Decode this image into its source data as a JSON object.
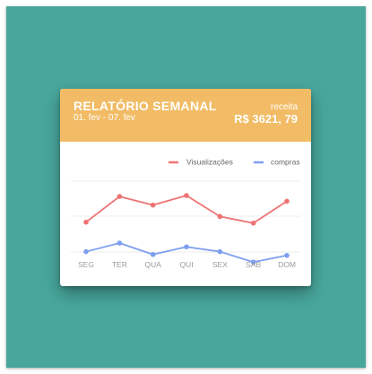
{
  "report": {
    "title": "RELATÓRIO SEMANAL",
    "date_range": "01. fev - 07. fev",
    "revenue_label": "receita",
    "revenue_value": "R$ 3621, 79"
  },
  "colors": {
    "background": "#48a79c",
    "header": "#f2bc66",
    "visualizacoes": "#ee7373",
    "compras": "#7e9ff0"
  },
  "chart_data": {
    "type": "line",
    "categories": [
      "SEG",
      "TER",
      "QUA",
      "QUI",
      "SEX",
      "SAB",
      "DOM"
    ],
    "series": [
      {
        "name": "Visualizações",
        "values": [
          55,
          82,
          73,
          83,
          61,
          54,
          77
        ]
      },
      {
        "name": "compras",
        "values": [
          24,
          33,
          21,
          29,
          24,
          13,
          20
        ]
      }
    ],
    "ylim": [
      0,
      100
    ],
    "grid": true,
    "legend": "top-right"
  }
}
